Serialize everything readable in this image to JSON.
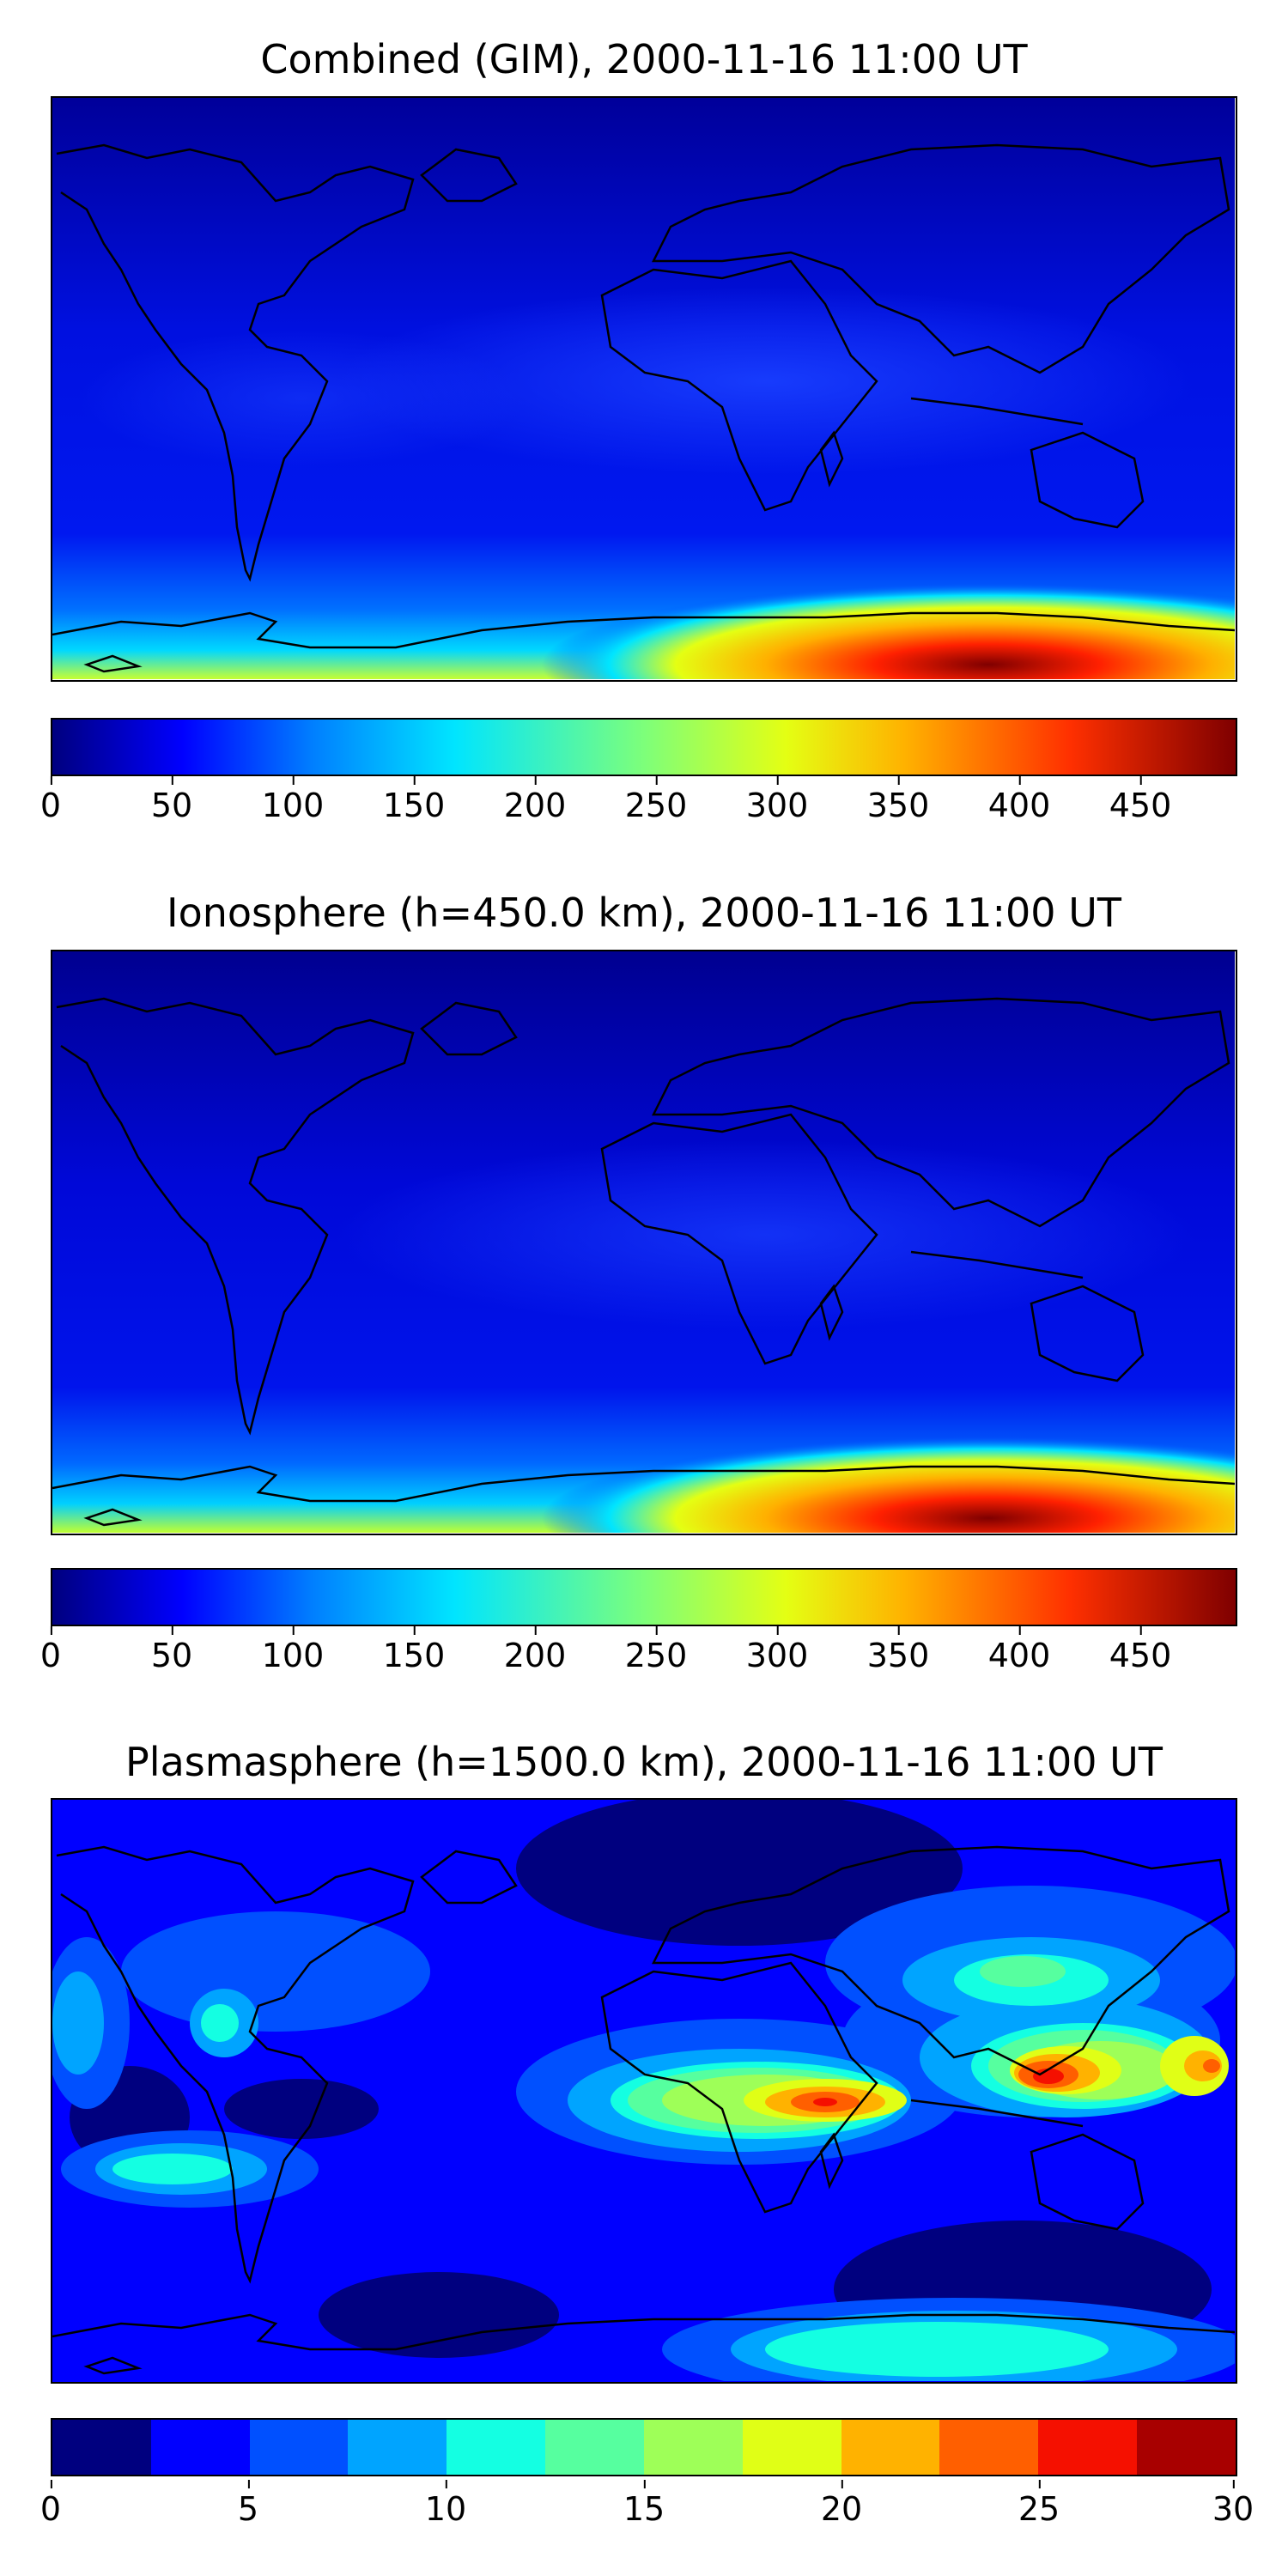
{
  "chart_data": [
    {
      "type": "heatmap",
      "title": "Combined (GIM), 2000-11-16 11:00 UT",
      "colorbar": {
        "ticks": [
          "0",
          "50",
          "100",
          "150",
          "200",
          "250",
          "300",
          "350",
          "400",
          "450"
        ],
        "range": [
          0,
          490
        ],
        "colormap": "jet"
      },
      "features": {
        "south_polar_max_near_lon": 90,
        "max_value": 480
      }
    },
    {
      "type": "heatmap",
      "title": "Ionosphere  (h=450.0 km), 2000-11-16 11:00 UT",
      "colorbar": {
        "ticks": [
          "0",
          "50",
          "100",
          "150",
          "200",
          "250",
          "300",
          "350",
          "400",
          "450"
        ],
        "range": [
          0,
          490
        ],
        "colormap": "jet"
      },
      "features": {
        "south_polar_max_near_lon": 90,
        "max_value": 470
      }
    },
    {
      "type": "heatmap",
      "title": "Plasmasphere (h=1500.0 km), 2000-11-16 11:00 UT",
      "colorbar": {
        "ticks": [
          "0",
          "5",
          "10",
          "15",
          "20",
          "25",
          "30"
        ],
        "range": [
          0,
          30
        ],
        "levels": 12,
        "colormap": "jet (discrete)"
      },
      "features": {
        "max_regions": [
          "Indonesia",
          "East Africa / Indian Ocean"
        ],
        "max_value": 27
      }
    }
  ],
  "colors": {
    "jet_discrete": [
      "#00007f",
      "#0000ff",
      "#0050ff",
      "#00a4ff",
      "#14ffe2",
      "#56ff9f",
      "#9eff58",
      "#e0ff16",
      "#ffb200",
      "#ff5f00",
      "#f51000",
      "#a80000"
    ]
  }
}
